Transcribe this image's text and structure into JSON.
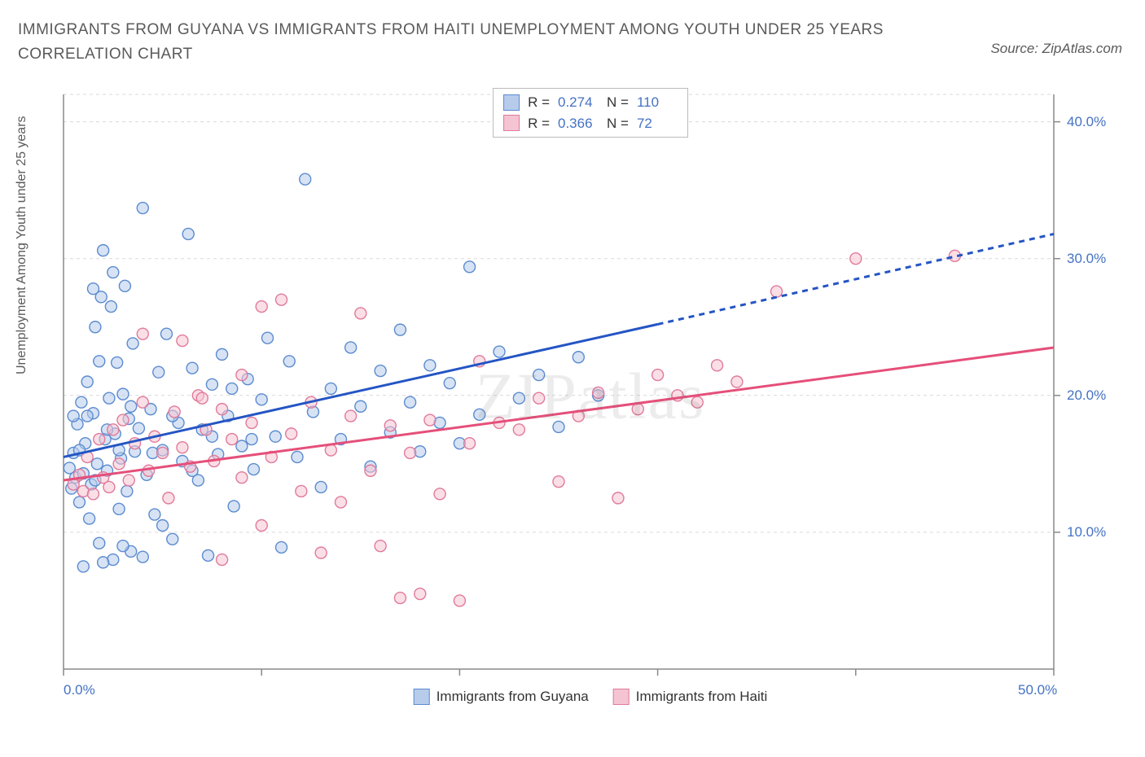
{
  "title": "IMMIGRANTS FROM GUYANA VS IMMIGRANTS FROM HAITI UNEMPLOYMENT AMONG YOUTH UNDER 25 YEARS CORRELATION CHART",
  "source": "Source: ZipAtlas.com",
  "watermark": "ZIPatlas",
  "chart": {
    "type": "scatter",
    "background_color": "#ffffff",
    "grid_color": "#d9d9d9",
    "axis_color": "#888888",
    "tick_color": "#888888",
    "xlim": [
      0,
      50
    ],
    "ylim": [
      0,
      42
    ],
    "x_ticks": [
      0,
      10,
      20,
      30,
      40,
      50
    ],
    "x_tick_labels": [
      "0.0%",
      "",
      "",
      "",
      "",
      "50.0%"
    ],
    "y_ticks": [
      10,
      20,
      30,
      40
    ],
    "y_tick_labels": [
      "10.0%",
      "20.0%",
      "30.0%",
      "40.0%"
    ],
    "y_axis_label": "Unemployment Among Youth under 25 years",
    "label_fontsize": 16,
    "tick_label_color": "#4472c4",
    "marker_radius": 7,
    "marker_stroke_width": 1.4,
    "trend_line_width": 3,
    "series": [
      {
        "name": "Immigrants from Guyana",
        "fill": "#b7cceb",
        "stroke": "#5b8bd0",
        "fill_opacity": 0.55,
        "R": "0.274",
        "N": "110",
        "trend": {
          "color": "#2455c4",
          "x1": 0,
          "y1": 15.5,
          "x2_solid": 30,
          "y2_solid": 25.2,
          "x2": 50,
          "y2": 31.8
        },
        "points": [
          [
            0.3,
            14.7
          ],
          [
            0.4,
            13.2
          ],
          [
            0.5,
            15.8
          ],
          [
            0.6,
            14.0
          ],
          [
            0.7,
            17.9
          ],
          [
            0.8,
            12.2
          ],
          [
            0.9,
            19.5
          ],
          [
            1.0,
            14.3
          ],
          [
            1.1,
            16.5
          ],
          [
            1.2,
            21.0
          ],
          [
            1.3,
            11.0
          ],
          [
            1.4,
            13.5
          ],
          [
            1.5,
            18.7
          ],
          [
            1.6,
            25.0
          ],
          [
            1.7,
            15.0
          ],
          [
            1.8,
            9.2
          ],
          [
            1.9,
            27.2
          ],
          [
            2.0,
            30.6
          ],
          [
            2.1,
            16.8
          ],
          [
            2.2,
            14.5
          ],
          [
            2.3,
            19.8
          ],
          [
            2.4,
            26.5
          ],
          [
            2.5,
            8.0
          ],
          [
            2.6,
            17.2
          ],
          [
            2.7,
            22.4
          ],
          [
            2.8,
            11.7
          ],
          [
            2.9,
            15.4
          ],
          [
            3.0,
            20.1
          ],
          [
            3.1,
            28.0
          ],
          [
            3.2,
            13.0
          ],
          [
            3.3,
            18.3
          ],
          [
            3.4,
            8.6
          ],
          [
            3.5,
            23.8
          ],
          [
            3.6,
            15.9
          ],
          [
            3.8,
            17.6
          ],
          [
            4.0,
            33.7
          ],
          [
            4.2,
            14.2
          ],
          [
            4.4,
            19.0
          ],
          [
            4.6,
            11.3
          ],
          [
            4.8,
            21.7
          ],
          [
            5.0,
            16.0
          ],
          [
            5.2,
            24.5
          ],
          [
            5.5,
            9.5
          ],
          [
            5.8,
            18.0
          ],
          [
            6.0,
            15.2
          ],
          [
            6.3,
            31.8
          ],
          [
            6.5,
            22.0
          ],
          [
            6.8,
            13.8
          ],
          [
            7.0,
            17.5
          ],
          [
            7.3,
            8.3
          ],
          [
            7.5,
            20.8
          ],
          [
            7.8,
            15.7
          ],
          [
            8.0,
            23.0
          ],
          [
            8.3,
            18.5
          ],
          [
            8.6,
            11.9
          ],
          [
            9.0,
            16.3
          ],
          [
            9.3,
            21.2
          ],
          [
            9.6,
            14.6
          ],
          [
            10.0,
            19.7
          ],
          [
            10.3,
            24.2
          ],
          [
            10.7,
            17.0
          ],
          [
            11.0,
            8.9
          ],
          [
            11.4,
            22.5
          ],
          [
            11.8,
            15.5
          ],
          [
            12.2,
            35.8
          ],
          [
            12.6,
            18.8
          ],
          [
            13.0,
            13.3
          ],
          [
            13.5,
            20.5
          ],
          [
            14.0,
            16.8
          ],
          [
            14.5,
            23.5
          ],
          [
            15.0,
            19.2
          ],
          [
            15.5,
            14.8
          ],
          [
            16.0,
            21.8
          ],
          [
            16.5,
            17.3
          ],
          [
            17.0,
            24.8
          ],
          [
            17.5,
            19.5
          ],
          [
            18.0,
            15.9
          ],
          [
            18.5,
            22.2
          ],
          [
            19.0,
            18.0
          ],
          [
            19.5,
            20.9
          ],
          [
            20.0,
            16.5
          ],
          [
            20.5,
            29.4
          ],
          [
            21.0,
            18.6
          ],
          [
            22.0,
            23.2
          ],
          [
            23.0,
            19.8
          ],
          [
            24.0,
            21.5
          ],
          [
            25.0,
            17.7
          ],
          [
            26.0,
            22.8
          ],
          [
            27.0,
            20.0
          ],
          [
            1.0,
            7.5
          ],
          [
            2.0,
            7.8
          ],
          [
            3.0,
            9.0
          ],
          [
            4.0,
            8.2
          ],
          [
            5.0,
            10.5
          ],
          [
            1.5,
            27.8
          ],
          [
            2.5,
            29.0
          ],
          [
            1.2,
            18.5
          ],
          [
            0.8,
            16.0
          ],
          [
            1.6,
            13.8
          ],
          [
            2.2,
            17.5
          ],
          [
            3.4,
            19.2
          ],
          [
            4.5,
            15.8
          ],
          [
            5.5,
            18.5
          ],
          [
            6.5,
            14.5
          ],
          [
            7.5,
            17.0
          ],
          [
            8.5,
            20.5
          ],
          [
            9.5,
            16.8
          ],
          [
            0.5,
            18.5
          ],
          [
            1.8,
            22.5
          ],
          [
            2.8,
            16.0
          ]
        ]
      },
      {
        "name": "Immigrants from Haiti",
        "fill": "#f5c4d2",
        "stroke": "#e17a9b",
        "fill_opacity": 0.55,
        "R": "0.366",
        "N": "72",
        "trend": {
          "color": "#e54f7a",
          "x1": 0,
          "y1": 13.8,
          "x2_solid": 50,
          "y2_solid": 23.5,
          "x2": 50,
          "y2": 23.5
        },
        "points": [
          [
            0.5,
            13.5
          ],
          [
            0.8,
            14.2
          ],
          [
            1.0,
            13.0
          ],
          [
            1.2,
            15.5
          ],
          [
            1.5,
            12.8
          ],
          [
            1.8,
            16.8
          ],
          [
            2.0,
            14.0
          ],
          [
            2.3,
            13.3
          ],
          [
            2.5,
            17.5
          ],
          [
            2.8,
            15.0
          ],
          [
            3.0,
            18.2
          ],
          [
            3.3,
            13.8
          ],
          [
            3.6,
            16.5
          ],
          [
            4.0,
            19.5
          ],
          [
            4.3,
            14.5
          ],
          [
            4.6,
            17.0
          ],
          [
            5.0,
            15.8
          ],
          [
            5.3,
            12.5
          ],
          [
            5.6,
            18.8
          ],
          [
            6.0,
            16.2
          ],
          [
            6.4,
            14.8
          ],
          [
            6.8,
            20.0
          ],
          [
            7.2,
            17.5
          ],
          [
            7.6,
            15.2
          ],
          [
            8.0,
            19.0
          ],
          [
            8.5,
            16.8
          ],
          [
            9.0,
            14.0
          ],
          [
            9.5,
            18.0
          ],
          [
            10.0,
            26.5
          ],
          [
            10.5,
            15.5
          ],
          [
            11.0,
            27.0
          ],
          [
            11.5,
            17.2
          ],
          [
            12.0,
            13.0
          ],
          [
            12.5,
            19.5
          ],
          [
            13.0,
            8.5
          ],
          [
            13.5,
            16.0
          ],
          [
            14.0,
            12.2
          ],
          [
            14.5,
            18.5
          ],
          [
            15.0,
            26.0
          ],
          [
            15.5,
            14.5
          ],
          [
            16.0,
            9.0
          ],
          [
            16.5,
            17.8
          ],
          [
            17.0,
            5.2
          ],
          [
            17.5,
            15.8
          ],
          [
            18.0,
            5.5
          ],
          [
            18.5,
            18.2
          ],
          [
            19.0,
            12.8
          ],
          [
            20.0,
            5.0
          ],
          [
            20.5,
            16.5
          ],
          [
            21.0,
            22.5
          ],
          [
            22.0,
            18.0
          ],
          [
            23.0,
            17.5
          ],
          [
            24.0,
            19.8
          ],
          [
            25.0,
            13.7
          ],
          [
            26.0,
            18.5
          ],
          [
            27.0,
            20.2
          ],
          [
            28.0,
            12.5
          ],
          [
            29.0,
            19.0
          ],
          [
            30.0,
            21.5
          ],
          [
            31.0,
            20.0
          ],
          [
            32.0,
            19.5
          ],
          [
            33.0,
            22.2
          ],
          [
            34.0,
            21.0
          ],
          [
            36.0,
            27.6
          ],
          [
            40.0,
            30.0
          ],
          [
            45.0,
            30.2
          ],
          [
            8.0,
            8.0
          ],
          [
            10.0,
            10.5
          ],
          [
            6.0,
            24.0
          ],
          [
            4.0,
            24.5
          ],
          [
            7.0,
            19.8
          ],
          [
            9.0,
            21.5
          ]
        ]
      }
    ],
    "legend_top": {
      "border_color": "#bbbbbb",
      "r_label": "R =",
      "n_label": "N ="
    },
    "legend_bottom": {}
  }
}
